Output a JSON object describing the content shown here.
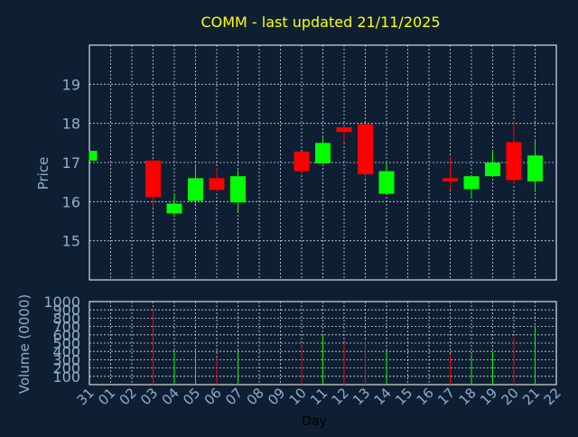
{
  "chart_data": {
    "type": "candlestick",
    "title": "COMM - last updated 21/11/2025",
    "xlabel": "Day",
    "price_panel": {
      "ylabel": "Price",
      "yticks": [
        15,
        16,
        17,
        18,
        19
      ],
      "ylim": [
        14.0,
        20.0
      ]
    },
    "volume_panel": {
      "ylabel": "Volume (0000)",
      "yticks": [
        100,
        200,
        300,
        400,
        500,
        600,
        700,
        800,
        900,
        1000
      ],
      "ylim": [
        0,
        1000
      ]
    },
    "x_ticks": [
      "31",
      "01",
      "02",
      "03",
      "04",
      "05",
      "06",
      "07",
      "08",
      "09",
      "10",
      "11",
      "12",
      "13",
      "14",
      "15",
      "16",
      "17",
      "18",
      "19",
      "20",
      "21",
      "22"
    ],
    "candles": [
      {
        "day": "31",
        "open": 17.05,
        "close": 17.3,
        "high": 17.3,
        "low": 17.05,
        "volume": 0
      },
      {
        "day": "03",
        "open": 17.05,
        "close": 16.12,
        "high": 17.08,
        "low": 15.85,
        "volume": 920
      },
      {
        "day": "04",
        "open": 15.7,
        "close": 15.95,
        "high": 16.22,
        "low": 15.65,
        "volume": 420
      },
      {
        "day": "05",
        "open": 16.02,
        "close": 16.6,
        "high": 16.95,
        "low": 15.95,
        "volume": 400
      },
      {
        "day": "06",
        "open": 16.6,
        "close": 16.3,
        "high": 16.85,
        "low": 16.25,
        "volume": 330
      },
      {
        "day": "07",
        "open": 15.98,
        "close": 16.65,
        "high": 16.8,
        "low": 15.75,
        "volume": 420
      },
      {
        "day": "10",
        "open": 17.28,
        "close": 16.78,
        "high": 17.28,
        "low": 16.7,
        "volume": 470
      },
      {
        "day": "11",
        "open": 16.98,
        "close": 17.5,
        "high": 17.65,
        "low": 16.98,
        "volume": 600
      },
      {
        "day": "12",
        "open": 17.9,
        "close": 17.78,
        "high": 17.95,
        "low": 17.5,
        "volume": 500
      },
      {
        "day": "13",
        "open": 17.98,
        "close": 16.7,
        "high": 17.98,
        "low": 16.6,
        "volume": 530
      },
      {
        "day": "14",
        "open": 16.2,
        "close": 16.78,
        "high": 17.05,
        "low": 16.2,
        "volume": 420
      },
      {
        "day": "17",
        "open": 16.6,
        "close": 16.52,
        "high": 17.15,
        "low": 16.3,
        "volume": 370
      },
      {
        "day": "18",
        "open": 16.32,
        "close": 16.65,
        "high": 16.65,
        "low": 16.1,
        "volume": 360
      },
      {
        "day": "19",
        "open": 16.65,
        "close": 17.0,
        "high": 17.3,
        "low": 16.65,
        "volume": 400
      },
      {
        "day": "20",
        "open": 17.52,
        "close": 16.55,
        "high": 18.05,
        "low": 16.45,
        "volume": 580
      },
      {
        "day": "21",
        "open": 16.52,
        "close": 17.18,
        "high": 17.6,
        "low": 16.25,
        "volume": 700
      }
    ],
    "up_color": "#00ff00",
    "down_color": "#ff0000",
    "grid": true
  },
  "theme": {
    "background": "#0f1f33",
    "axis_text": "#8faecb",
    "title_color": "#ffff00",
    "xlabel_color": "#000000",
    "grid_color": "#cfd6df"
  }
}
